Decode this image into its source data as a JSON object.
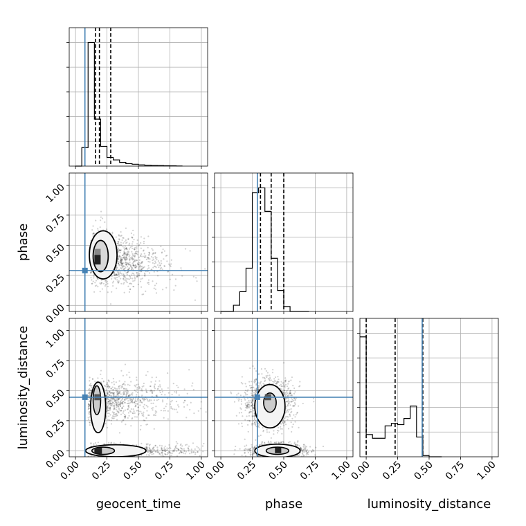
{
  "chart_data": {
    "type": "corner",
    "parameters": [
      "geocent_time",
      "phase",
      "luminosity_distance"
    ],
    "ticks": [
      "0.00",
      "0.25",
      "0.50",
      "0.75",
      "1.00"
    ],
    "tick_values": [
      0,
      0.25,
      0.5,
      0.75,
      1.0
    ],
    "truths": {
      "geocent_time": 0.075,
      "phase": 0.29,
      "luminosity_distance": 0.445
    },
    "truth_color": "#4682b4",
    "grid": true,
    "histograms": {
      "geocent_time": {
        "xlim": [
          -0.05,
          1.05
        ],
        "edges": [
          0.0,
          0.05,
          0.1,
          0.15,
          0.2,
          0.25,
          0.3,
          0.35,
          0.4,
          0.45,
          0.5,
          0.55,
          0.6,
          0.65,
          0.7,
          0.75,
          0.8,
          0.85
        ],
        "counts": [
          0,
          0.15,
          1.0,
          0.38,
          0.16,
          0.07,
          0.05,
          0.03,
          0.02,
          0.015,
          0.01,
          0.007,
          0.005,
          0.004,
          0.003,
          0.002,
          0.001
        ],
        "quantiles": [
          0.16,
          0.19,
          0.28
        ]
      },
      "phase": {
        "xlim": [
          -0.05,
          1.05
        ],
        "edges": [
          0.0,
          0.05,
          0.1,
          0.15,
          0.2,
          0.25,
          0.3,
          0.35,
          0.4,
          0.45,
          0.5,
          0.55,
          0.6,
          0.65,
          0.7
        ],
        "counts": [
          0,
          0,
          0.05,
          0.16,
          0.35,
          0.96,
          1.0,
          0.81,
          0.43,
          0.17,
          0.04,
          0,
          0,
          0
        ],
        "quantiles": [
          0.315,
          0.4,
          0.5
        ]
      },
      "luminosity_distance": {
        "xlim": [
          -0.05,
          1.05
        ],
        "edges": [
          -0.05,
          0.0,
          0.05,
          0.1,
          0.15,
          0.2,
          0.25,
          0.3,
          0.35,
          0.4,
          0.45,
          0.5,
          0.55,
          0.6
        ],
        "counts": [
          0.97,
          0.18,
          0.15,
          0.15,
          0.25,
          0.27,
          0.26,
          0.31,
          0.41,
          0.16,
          0.01,
          0,
          0
        ],
        "quantiles": [
          0.0,
          0.23,
          0.45
        ]
      }
    },
    "scatter_2d": [
      {
        "x_param": "geocent_time",
        "y_param": "phase",
        "xlim": [
          -0.05,
          1.05
        ],
        "ylim": [
          -0.05,
          1.1
        ]
      },
      {
        "x_param": "geocent_time",
        "y_param": "luminosity_distance",
        "xlim": [
          -0.05,
          1.05
        ],
        "ylim": [
          -0.05,
          1.1
        ]
      },
      {
        "x_param": "phase",
        "y_param": "luminosity_distance",
        "xlim": [
          -0.05,
          1.05
        ],
        "ylim": [
          -0.05,
          1.1
        ]
      }
    ]
  }
}
